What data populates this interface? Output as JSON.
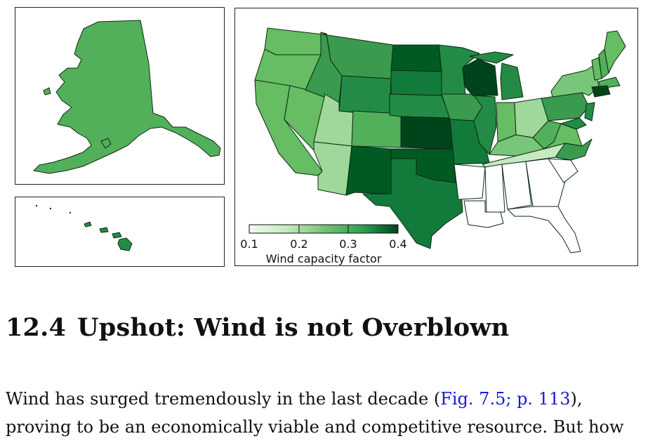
{
  "colorbar": {
    "ticks": [
      "0.1",
      "0.2",
      "0.3",
      "0.4"
    ],
    "label": "Wind capacity factor",
    "colors": [
      "#f2fbef",
      "#c6e9c0",
      "#74c476",
      "#31a354",
      "#00441b"
    ]
  },
  "section": {
    "number": "12.4",
    "title": "Upshot: Wind is not Overblown"
  },
  "paragraph": {
    "line1_pre": "Wind has surged tremendously in the last decade (",
    "ref_figure": "Fig. 7.5;",
    "ref_page": "p. 113",
    "line1_post": "),",
    "line2": "proving to be an economically viable and competitive resource. But how"
  },
  "map_colors": {
    "none": "#ffffff",
    "c10": "#c7e9c0",
    "c20": "#9fd89a",
    "c23": "#78c679",
    "c25": "#66bd63",
    "c27": "#52b05a",
    "c30": "#3a9a4e",
    "c33": "#238b45",
    "c36": "#127a3a",
    "c40": "#005a24",
    "c42": "#00441b"
  }
}
